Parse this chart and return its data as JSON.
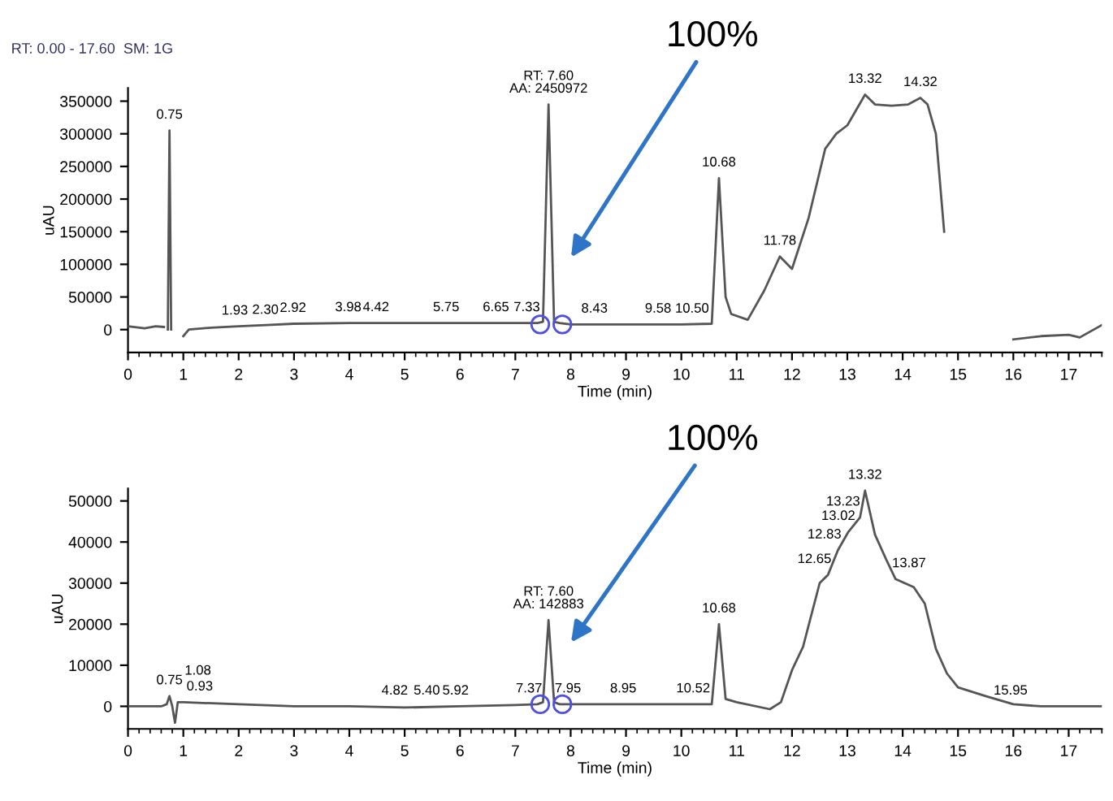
{
  "chart_data": [
    {
      "type": "line",
      "xlabel": "Time (min)",
      "ylabel": "uAU",
      "xlim": [
        0,
        17.6
      ],
      "ylim": [
        -35000,
        370000
      ],
      "xticks": [
        0,
        1,
        2,
        3,
        4,
        5,
        6,
        7,
        8,
        9,
        10,
        11,
        12,
        13,
        14,
        15,
        16,
        17
      ],
      "yticks": [
        0,
        50000,
        100000,
        150000,
        200000,
        250000,
        300000,
        350000
      ],
      "grid": false,
      "legend": false,
      "marker": "none",
      "line_style": "solid",
      "series": [
        {
          "color": "#555555",
          "x": [
            0,
            0.3,
            0.5,
            0.65,
            0.68,
            0.72,
            0.75,
            0.78,
            0.8,
            0.97,
            1.0,
            1.1,
            1.5,
            2,
            2.5,
            3,
            4,
            5,
            6,
            7,
            7.4,
            7.5,
            7.6,
            7.7,
            7.8,
            8,
            10,
            10.55,
            10.68,
            10.8,
            10.9,
            11.2,
            11.5,
            11.78,
            12.0,
            12.3,
            12.6,
            12.8,
            13.0,
            13.32,
            13.5,
            13.8,
            14.1,
            14.32,
            14.45,
            14.6,
            14.75,
            14.9,
            15.6,
            16,
            16.5,
            17,
            17.2,
            17.6
          ],
          "values": [
            5000,
            2000,
            5000,
            4000,
            null,
            0,
            305000,
            0,
            null,
            null,
            -10000,
            0,
            3000,
            5000,
            7000,
            9000,
            10000,
            10000,
            10000,
            10000,
            10000,
            12000,
            345000,
            12000,
            10000,
            8000,
            8000,
            9000,
            232000,
            50000,
            24000,
            15000,
            60000,
            112000,
            93000,
            171000,
            277000,
            300000,
            313000,
            360000,
            345000,
            343000,
            345000,
            355000,
            345000,
            300000,
            150000,
            null,
            null,
            -15000,
            -10000,
            -8000,
            -12000,
            7000
          ]
        },
        {
          "type": "scatter",
          "color": "#5050e0",
          "marker": "circle",
          "x": [
            7.45,
            7.85
          ],
          "values": [
            8000,
            8000
          ]
        }
      ],
      "annotations": [
        "RT: 0.00 - 17.60  SM: 1G",
        {
          "text": "0.75",
          "x": 0.75,
          "y": 305000
        },
        {
          "text": "1.93",
          "x": 1.93,
          "y": 5000
        },
        {
          "text": "2.30",
          "x": 2.3,
          "y": 6000
        },
        {
          "text": "2.92",
          "x": 2.92,
          "y": 9000
        },
        {
          "text": "3.98",
          "x": 3.98,
          "y": 10000
        },
        {
          "text": "4.42",
          "x": 4.42,
          "y": 10000
        },
        {
          "text": "5.75",
          "x": 5.75,
          "y": 10000
        },
        {
          "text": "6.65",
          "x": 6.65,
          "y": 10000
        },
        {
          "text": "7.33",
          "x": 7.33,
          "y": 10000
        },
        {
          "text": "RT: 7.60\nAA: 2450972",
          "x": 7.6,
          "y": 345000
        },
        {
          "text": "8.43",
          "x": 8.43,
          "y": 8000
        },
        {
          "text": "9.58",
          "x": 9.58,
          "y": 8000
        },
        {
          "text": "10.50",
          "x": 10.5,
          "y": 8000
        },
        {
          "text": "10.68",
          "x": 10.68,
          "y": 232000
        },
        {
          "text": "11.78",
          "x": 11.78,
          "y": 112000
        },
        {
          "text": "13.32",
          "x": 13.32,
          "y": 360000
        },
        {
          "text": "14.32",
          "x": 14.32,
          "y": 355000
        },
        "100%"
      ]
    },
    {
      "type": "line",
      "xlabel": "Time (min)",
      "ylabel": "uAU",
      "xlim": [
        0,
        17.6
      ],
      "ylim": [
        -5500,
        53000
      ],
      "xticks": [
        0,
        1,
        2,
        3,
        4,
        5,
        6,
        7,
        8,
        9,
        10,
        11,
        12,
        13,
        14,
        15,
        16,
        17
      ],
      "yticks": [
        0,
        10000,
        20000,
        30000,
        40000,
        50000
      ],
      "grid": false,
      "legend": false,
      "marker": "none",
      "line_style": "solid",
      "series": [
        {
          "color": "#555555",
          "x": [
            0,
            0.6,
            0.7,
            0.75,
            0.8,
            0.85,
            0.9,
            1.0,
            2,
            3,
            4,
            5,
            6,
            7,
            7.4,
            7.5,
            7.6,
            7.7,
            7.8,
            10.55,
            10.68,
            10.8,
            11.0,
            11.6,
            11.8,
            12.0,
            12.2,
            12.5,
            12.65,
            12.83,
            13.02,
            13.23,
            13.32,
            13.5,
            13.7,
            13.87,
            14.2,
            14.4,
            14.6,
            14.8,
            15.0,
            15.5,
            16.0,
            16.5,
            17.6
          ],
          "values": [
            0,
            0,
            500,
            2500,
            0,
            -4000,
            1000,
            1000,
            500,
            0,
            0,
            -300,
            0,
            300,
            500,
            1000,
            21000,
            1000,
            500,
            500,
            20000,
            1800,
            1000,
            -700,
            1000,
            8800,
            14500,
            30000,
            32000,
            38000,
            42500,
            46000,
            52500,
            41800,
            35800,
            31000,
            29000,
            25000,
            14000,
            8000,
            4600,
            2500,
            500,
            0,
            0
          ]
        },
        {
          "type": "scatter",
          "color": "#5050e0",
          "marker": "circle",
          "x": [
            7.45,
            7.85
          ],
          "values": [
            500,
            500
          ]
        }
      ],
      "annotations": [
        {
          "text": "0.75",
          "x": 0.75,
          "y": 2500
        },
        {
          "text": "0.93",
          "x": 0.93,
          "y": 1000
        },
        {
          "text": "1.08",
          "x": 1.08,
          "y": 1000
        },
        {
          "text": "4.82",
          "x": 4.82,
          "y": 0
        },
        {
          "text": "5.40",
          "x": 5.4,
          "y": 0
        },
        {
          "text": "5.92",
          "x": 5.92,
          "y": 0
        },
        {
          "text": "7.37",
          "x": 7.37,
          "y": 500
        },
        {
          "text": "RT: 7.60\nAA: 142883",
          "x": 7.6,
          "y": 21000
        },
        {
          "text": "7.95",
          "x": 7.95,
          "y": 500
        },
        {
          "text": "8.95",
          "x": 8.95,
          "y": 500
        },
        {
          "text": "10.52",
          "x": 10.52,
          "y": 500
        },
        {
          "text": "10.68",
          "x": 10.68,
          "y": 20000
        },
        {
          "text": "12.65",
          "x": 12.65,
          "y": 32000
        },
        {
          "text": "12.83",
          "x": 12.83,
          "y": 38000
        },
        {
          "text": "13.02",
          "x": 13.02,
          "y": 42500
        },
        {
          "text": "13.23",
          "x": 13.23,
          "y": 46000
        },
        {
          "text": "13.32",
          "x": 13.32,
          "y": 52500
        },
        {
          "text": "13.87",
          "x": 13.87,
          "y": 31000
        },
        {
          "text": "15.95",
          "x": 15.95,
          "y": 0
        },
        "100%"
      ]
    }
  ]
}
